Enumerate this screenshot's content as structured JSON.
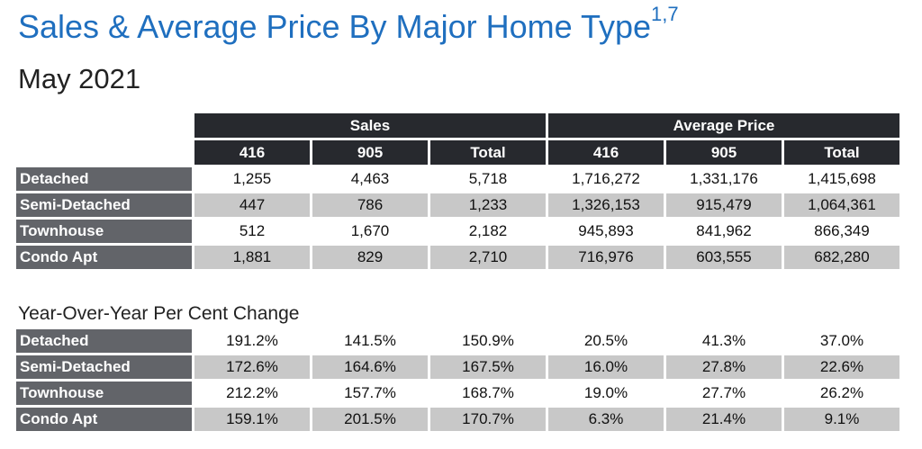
{
  "title": "Sales & Average Price By Major Home Type",
  "title_superscript": "1,7",
  "subtitle": "May 2021",
  "sales_table": {
    "group_headers": [
      "Sales",
      "Average Price"
    ],
    "column_headers": [
      "416",
      "905",
      "Total",
      "416",
      "905",
      "Total"
    ],
    "rows": [
      {
        "label": "Detached",
        "values": [
          "1,255",
          "4,463",
          "5,718",
          "1,716,272",
          "1,331,176",
          "1,415,698"
        ]
      },
      {
        "label": "Semi-Detached",
        "values": [
          "447",
          "786",
          "1,233",
          "1,326,153",
          "915,479",
          "1,064,361"
        ]
      },
      {
        "label": "Townhouse",
        "values": [
          "512",
          "1,670",
          "2,182",
          "945,893",
          "841,962",
          "866,349"
        ]
      },
      {
        "label": "Condo Apt",
        "values": [
          "1,881",
          "829",
          "2,710",
          "716,976",
          "603,555",
          "682,280"
        ]
      }
    ]
  },
  "yoy_table": {
    "title": "Year-Over-Year Per Cent Change",
    "rows": [
      {
        "label": "Detached",
        "values": [
          "191.2%",
          "141.5%",
          "150.9%",
          "20.5%",
          "41.3%",
          "37.0%"
        ]
      },
      {
        "label": "Semi-Detached",
        "values": [
          "172.6%",
          "164.6%",
          "167.5%",
          "16.0%",
          "27.8%",
          "22.6%"
        ]
      },
      {
        "label": "Townhouse",
        "values": [
          "212.2%",
          "157.7%",
          "168.7%",
          "19.0%",
          "27.7%",
          "26.2%"
        ]
      },
      {
        "label": "Condo Apt",
        "values": [
          "159.1%",
          "201.5%",
          "170.7%",
          "6.3%",
          "21.4%",
          "9.1%"
        ]
      }
    ]
  },
  "colors": {
    "title": "#1f6fbf",
    "header_bg": "#27292e",
    "row_label_bg": "#626469",
    "alt_row_bg": "#c8c8c8"
  }
}
